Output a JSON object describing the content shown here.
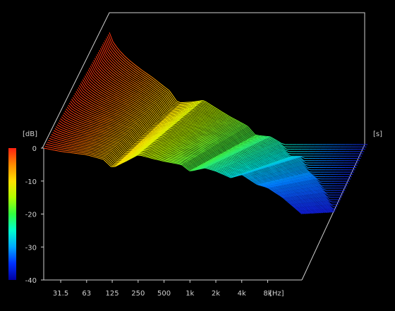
{
  "chart_data": {
    "type": "waterfall",
    "z_unit_label": "[dB]",
    "time_unit_label": "[s]",
    "x_unit_label": "[Hz]",
    "db_ticks": [
      0,
      -10,
      -20,
      -30,
      -40
    ],
    "db_range": [
      -40,
      0
    ],
    "freq_ticks": [
      {
        "hz": 31.5,
        "label": "31.5"
      },
      {
        "hz": 63,
        "label": "63"
      },
      {
        "hz": 125,
        "label": "125"
      },
      {
        "hz": 250,
        "label": "250"
      },
      {
        "hz": 500,
        "label": "500"
      },
      {
        "hz": 1000,
        "label": "1k"
      },
      {
        "hz": 2000,
        "label": "2k"
      },
      {
        "hz": 4000,
        "label": "4k"
      },
      {
        "hz": 8000,
        "label": "8k"
      }
    ],
    "freq_range_hz": [
      20,
      20000
    ],
    "colorbar_colors": [
      "#ff2010",
      "#ff8a00",
      "#ffe000",
      "#b0ff00",
      "#30ff40",
      "#00ffd0",
      "#00a8ff",
      "#0030ff",
      "#0000a0"
    ],
    "slice_count": 60,
    "response_first_slice_db": [
      {
        "hz": 20,
        "db": 0
      },
      {
        "hz": 31.5,
        "db": -1
      },
      {
        "hz": 63,
        "db": -2
      },
      {
        "hz": 100,
        "db": -3.5
      },
      {
        "hz": 125,
        "db": -6
      },
      {
        "hz": 180,
        "db": -4
      },
      {
        "hz": 250,
        "db": -2
      },
      {
        "hz": 350,
        "db": -3
      },
      {
        "hz": 500,
        "db": -4
      },
      {
        "hz": 800,
        "db": -5
      },
      {
        "hz": 1000,
        "db": -7
      },
      {
        "hz": 1500,
        "db": -6
      },
      {
        "hz": 2000,
        "db": -7
      },
      {
        "hz": 3000,
        "db": -9
      },
      {
        "hz": 4000,
        "db": -8
      },
      {
        "hz": 6000,
        "db": -11
      },
      {
        "hz": 8000,
        "db": -12
      },
      {
        "hz": 12000,
        "db": -15
      },
      {
        "hz": 20000,
        "db": -20
      }
    ],
    "decay_db_last_slice": -40
  }
}
